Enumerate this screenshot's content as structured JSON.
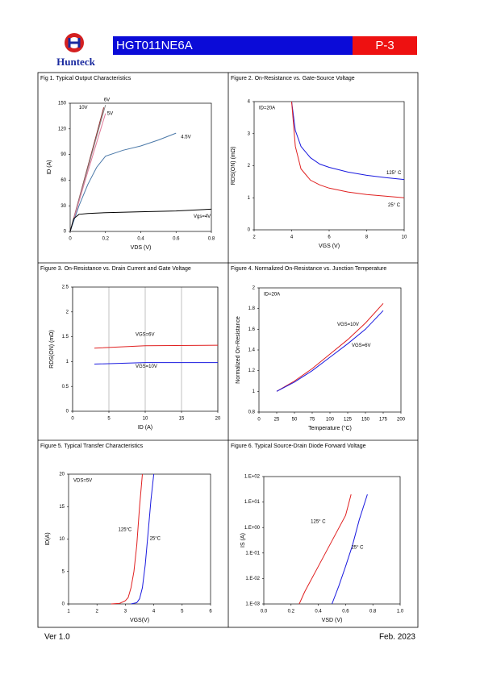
{
  "header": {
    "logo": "Hunteck",
    "part": "HGT011NE6A",
    "page": "P-3"
  },
  "footer": {
    "version": "Ver 1.0",
    "date": "Feb. 2023"
  },
  "chart_data": [
    {
      "type": "line",
      "title": "Fig 1. Typical Output Characteristics",
      "x_label": "VDS (V)",
      "y_label": "ID (A)",
      "xlim": [
        0,
        0.8
      ],
      "xticks": [
        0,
        0.2,
        0.4,
        0.6,
        0.8
      ],
      "ylim": [
        0,
        150
      ],
      "yticks": [
        0,
        30,
        60,
        90,
        120,
        150
      ],
      "series": [
        {
          "name": "10V",
          "color": "#8b2a2a",
          "x": [
            0,
            0.05,
            0.1,
            0.15,
            0.19
          ],
          "values": [
            0,
            38,
            76,
            114,
            145
          ]
        },
        {
          "name": "6V",
          "color": "#888888",
          "x": [
            0,
            0.05,
            0.1,
            0.15,
            0.2
          ],
          "values": [
            0,
            37,
            74,
            111,
            148
          ]
        },
        {
          "name": "5V",
          "color": "#e07a9a",
          "x": [
            0,
            0.05,
            0.1,
            0.15,
            0.2
          ],
          "values": [
            0,
            35,
            70,
            104,
            138
          ]
        },
        {
          "name": "4.5V",
          "color": "#4a78a8",
          "x": [
            0,
            0.05,
            0.1,
            0.15,
            0.2,
            0.3,
            0.4,
            0.5,
            0.6
          ],
          "values": [
            0,
            30,
            55,
            75,
            88,
            95,
            100,
            107,
            115
          ]
        },
        {
          "name": "Vgs=4V",
          "color": "#000000",
          "x": [
            0,
            0.02,
            0.05,
            0.1,
            0.2,
            0.4,
            0.6,
            0.8
          ],
          "values": [
            0,
            15,
            20,
            21,
            22,
            23,
            24,
            26
          ]
        }
      ]
    },
    {
      "type": "line",
      "title": "Figure 2. On-Resistance vs. Gate-Source Voltage",
      "x_label": "VGS (V)",
      "y_label": "RDS(ON) (mΩ)",
      "annotation": "ID=20A",
      "xlim": [
        2,
        10
      ],
      "xticks": [
        2,
        4,
        6,
        8,
        10
      ],
      "ylim": [
        0,
        4
      ],
      "yticks": [
        0,
        1,
        2,
        3,
        4
      ],
      "series": [
        {
          "name": "125° C",
          "color": "#1a1adf",
          "x": [
            4,
            4.2,
            4.5,
            5,
            5.5,
            6,
            7,
            8,
            9,
            10
          ],
          "values": [
            4,
            3.1,
            2.6,
            2.25,
            2.05,
            1.95,
            1.8,
            1.7,
            1.63,
            1.57
          ]
        },
        {
          "name": "25° C",
          "color": "#e02020",
          "x": [
            4,
            4.2,
            4.5,
            5,
            5.5,
            6,
            7,
            8,
            9,
            10
          ],
          "values": [
            4,
            2.6,
            1.9,
            1.55,
            1.4,
            1.3,
            1.18,
            1.1,
            1.05,
            1.0
          ]
        }
      ]
    },
    {
      "type": "line",
      "title": "Figure 3. On-Resistance vs. Drain Current and Gate Voltage",
      "x_label": "ID (A)",
      "y_label": "RDS(ON) (mΩ)",
      "grid": "x",
      "xlim": [
        0,
        20
      ],
      "xticks": [
        0,
        5,
        10,
        15,
        20
      ],
      "ylim": [
        0,
        2.5
      ],
      "yticks": [
        0,
        0.5,
        1,
        1.5,
        2,
        2.5
      ],
      "series": [
        {
          "name": "VGS=6V",
          "color": "#e02020",
          "x": [
            3,
            10,
            20
          ],
          "values": [
            1.27,
            1.32,
            1.33
          ]
        },
        {
          "name": "VGS=10V",
          "color": "#1a1adf",
          "x": [
            3,
            10,
            20
          ],
          "values": [
            0.95,
            0.98,
            0.98
          ]
        }
      ]
    },
    {
      "type": "line",
      "title": "Figure 4. Normalized On-Resistance vs. Junction Temperature",
      "x_label": "Temperature (°C)",
      "y_label": "Normalized On-Resistance",
      "annotation": "ID=20A",
      "xlim": [
        0,
        200
      ],
      "xticks": [
        0,
        25,
        50,
        75,
        100,
        125,
        150,
        175,
        200
      ],
      "ylim": [
        0.8,
        2
      ],
      "yticks": [
        0.8,
        1,
        1.2,
        1.4,
        1.6,
        1.8,
        2
      ],
      "series": [
        {
          "name": "VGS=10V",
          "color": "#e02020",
          "x": [
            25,
            50,
            75,
            100,
            125,
            150,
            175
          ],
          "values": [
            1,
            1.1,
            1.22,
            1.36,
            1.5,
            1.66,
            1.85
          ]
        },
        {
          "name": "VGS=6V",
          "color": "#1a1adf",
          "x": [
            25,
            50,
            75,
            100,
            125,
            150,
            175
          ],
          "values": [
            1,
            1.09,
            1.2,
            1.33,
            1.46,
            1.6,
            1.78
          ]
        }
      ]
    },
    {
      "type": "line",
      "title": "Figure 5. Typical Transfer Characteristics",
      "x_label": "VGS(V)",
      "y_label": "ID(A)",
      "annotation": "VDS=5V",
      "xlim": [
        1,
        6
      ],
      "xticks": [
        1,
        2,
        3,
        4,
        5,
        6
      ],
      "ylim": [
        0,
        20
      ],
      "yticks": [
        0,
        5,
        10,
        15,
        20
      ],
      "series": [
        {
          "name": "125°C",
          "color": "#e02020",
          "x": [
            2.5,
            2.8,
            3.0,
            3.1,
            3.2,
            3.3,
            3.4,
            3.5,
            3.6
          ],
          "values": [
            0,
            0.1,
            0.5,
            1,
            2.5,
            5,
            9,
            15,
            20
          ]
        },
        {
          "name": "25°C",
          "color": "#1a1adf",
          "x": [
            3.2,
            3.4,
            3.5,
            3.6,
            3.7,
            3.8,
            3.9,
            4.0
          ],
          "values": [
            0,
            0.2,
            0.8,
            2.5,
            6,
            11,
            16,
            20
          ]
        }
      ]
    },
    {
      "type": "line",
      "title": "Figure 6. Typical Source-Drain Diode Forward Voltage",
      "x_label": "VSD (V)",
      "y_label": "IS (A)",
      "log_y": true,
      "xlim": [
        0,
        1
      ],
      "xticks": [
        {
          "value": 0,
          "label": "0.0"
        },
        0.2,
        0.4,
        0.6,
        0.8,
        {
          "value": 1,
          "label": "1.0"
        }
      ],
      "ylim": [
        0.001,
        100
      ],
      "yticks": [
        {
          "value": 0.001,
          "label": "1.E-03"
        },
        {
          "value": 0.01,
          "label": "1.E-02"
        },
        {
          "value": 0.1,
          "label": "1.E-01"
        },
        {
          "value": 1,
          "label": "1.E+00"
        },
        {
          "value": 10,
          "label": "1.E+01"
        },
        {
          "value": 100,
          "label": "1.E+02"
        }
      ],
      "series": [
        {
          "name": "125° C",
          "color": "#e02020",
          "x": [
            0.26,
            0.3,
            0.4,
            0.5,
            0.6,
            0.64
          ],
          "values": [
            0.001,
            0.003,
            0.03,
            0.3,
            3,
            20
          ]
        },
        {
          "name": "25° C",
          "color": "#1a1adf",
          "x": [
            0.5,
            0.55,
            0.6,
            0.65,
            0.7,
            0.76
          ],
          "values": [
            0.001,
            0.005,
            0.03,
            0.2,
            2,
            20
          ]
        }
      ]
    }
  ]
}
